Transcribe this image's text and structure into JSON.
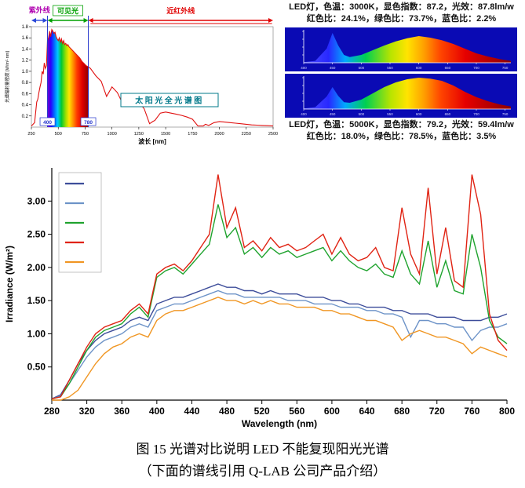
{
  "caption": {
    "line1": "图 15 光谱对比说明 LED 不能复现阳光光谱",
    "line2": "（下面的谱线引用 Q-LAB 公司产品介绍）"
  },
  "led_3000k": {
    "line1": "LED灯，色温：3000K，显色指数：87.2，光效：87.8lm/w",
    "line2": "红色比：24.1%，绿色比：73.7%，蓝色比：2.2%"
  },
  "led_5000k": {
    "line1": "LED灯，色温：5000K，显色指数：79.2，光效：59.4lm/w",
    "line2": "红色比：18.0%，绿色比：78.5%，蓝色比：3.5%"
  },
  "colors": {
    "led_bg": "#0a0ab4",
    "solar_curve": "#e01010",
    "uv_label": "#b000b0",
    "uv_arrow": "#2a48d8",
    "visible_label": "#00a000",
    "nir_label": "#e00000",
    "boundary_line": "#2233cc",
    "solar_title": "#00788a",
    "axis": "#000000"
  },
  "chart_data": [
    {
      "id": "solar",
      "type": "area",
      "title": "太阳光全光谱图",
      "xlabel": "波长 [nm]",
      "ylabel": "光谱辐射量密度 [W/m²·nm]",
      "xlim": [
        250,
        2500
      ],
      "ylim": [
        0,
        1.8
      ],
      "x_ticks": [
        250,
        500,
        750,
        1000,
        1250,
        1500,
        1750,
        2000,
        2250,
        2500
      ],
      "y_ticks": [
        0.2,
        0.4,
        0.6,
        0.8,
        1.0,
        1.2,
        1.4,
        1.6,
        1.8
      ],
      "regions": [
        {
          "label": "紫外线",
          "from": 250,
          "to": 400
        },
        {
          "label": "可见光",
          "from": 400,
          "to": 780
        },
        {
          "label": "近红外线",
          "from": 780,
          "to": 2500
        }
      ],
      "boundaries": [
        "400",
        "780"
      ],
      "x": [
        250,
        280,
        300,
        310,
        320,
        330,
        340,
        350,
        360,
        370,
        380,
        390,
        400,
        410,
        420,
        430,
        440,
        450,
        460,
        470,
        480,
        490,
        500,
        510,
        520,
        530,
        540,
        550,
        560,
        570,
        580,
        590,
        600,
        620,
        640,
        660,
        680,
        700,
        720,
        740,
        760,
        780,
        800,
        850,
        900,
        950,
        1000,
        1050,
        1100,
        1130,
        1150,
        1200,
        1250,
        1300,
        1350,
        1380,
        1400,
        1450,
        1500,
        1550,
        1600,
        1650,
        1700,
        1750,
        1800,
        1850,
        1870,
        1900,
        1950,
        2000,
        2050,
        2100,
        2150,
        2200,
        2250,
        2300,
        2350,
        2400,
        2450,
        2500
      ],
      "y": [
        0.02,
        0.08,
        0.45,
        0.5,
        0.62,
        0.72,
        0.8,
        1.0,
        0.95,
        1.15,
        1.05,
        1.1,
        1.55,
        1.6,
        1.72,
        1.62,
        1.75,
        1.72,
        1.68,
        1.7,
        1.62,
        1.58,
        1.55,
        1.6,
        1.52,
        1.58,
        1.5,
        1.55,
        1.48,
        1.5,
        1.46,
        1.48,
        1.44,
        1.4,
        1.36,
        1.32,
        1.28,
        1.24,
        1.18,
        1.14,
        1.1,
        1.08,
        1.05,
        0.92,
        0.82,
        0.55,
        0.72,
        0.62,
        0.42,
        0.5,
        0.52,
        0.48,
        0.44,
        0.33,
        0.06,
        0.1,
        0.12,
        0.25,
        0.27,
        0.25,
        0.23,
        0.21,
        0.18,
        0.14,
        0.02,
        0.02,
        0.05,
        0.03,
        0.08,
        0.1,
        0.09,
        0.08,
        0.07,
        0.06,
        0.05,
        0.04,
        0.035,
        0.03,
        0.025,
        0.02
      ]
    },
    {
      "id": "led_top",
      "type": "area",
      "xlim": [
        400,
        760
      ],
      "ylim": [
        0,
        1
      ],
      "x": [
        400,
        420,
        440,
        450,
        460,
        470,
        480,
        500,
        520,
        540,
        560,
        580,
        600,
        620,
        640,
        660,
        680,
        700,
        720,
        740,
        760
      ],
      "y": [
        0.02,
        0.06,
        0.45,
        0.95,
        0.55,
        0.25,
        0.18,
        0.25,
        0.4,
        0.55,
        0.68,
        0.78,
        0.85,
        0.8,
        0.72,
        0.6,
        0.45,
        0.3,
        0.2,
        0.12,
        0.06
      ],
      "x_ticks": [
        400,
        450,
        500,
        550,
        600,
        650,
        700,
        750
      ]
    },
    {
      "id": "led_bottom",
      "type": "area",
      "xlim": [
        400,
        760
      ],
      "ylim": [
        0,
        1
      ],
      "x": [
        400,
        420,
        440,
        450,
        460,
        470,
        480,
        500,
        520,
        540,
        560,
        580,
        600,
        620,
        640,
        660,
        680,
        700,
        720,
        740,
        760
      ],
      "y": [
        0.02,
        0.06,
        0.4,
        0.7,
        0.42,
        0.22,
        0.2,
        0.3,
        0.5,
        0.7,
        0.85,
        0.95,
        1.0,
        0.97,
        0.9,
        0.75,
        0.55,
        0.38,
        0.25,
        0.15,
        0.08
      ],
      "x_ticks": [
        400,
        450,
        500,
        550,
        600,
        650,
        700,
        750
      ]
    },
    {
      "id": "irradiance",
      "type": "line",
      "xlabel": "Wavelength (nm)",
      "ylabel": "Irradiance (W/m²)",
      "xlim": [
        280,
        800
      ],
      "ylim": [
        0,
        3.5
      ],
      "x_ticks": [
        280,
        320,
        360,
        400,
        440,
        480,
        520,
        560,
        600,
        640,
        680,
        720,
        760,
        800
      ],
      "y_ticks": [
        0.5,
        1.0,
        1.5,
        2.0,
        2.5,
        3.0
      ],
      "legend_position": "top-left",
      "grid": false,
      "x": [
        280,
        290,
        300,
        310,
        320,
        330,
        340,
        350,
        360,
        370,
        380,
        390,
        400,
        410,
        420,
        430,
        440,
        450,
        460,
        470,
        480,
        490,
        500,
        510,
        520,
        530,
        540,
        550,
        560,
        570,
        580,
        590,
        600,
        610,
        620,
        630,
        640,
        650,
        660,
        670,
        680,
        690,
        700,
        710,
        720,
        730,
        740,
        750,
        760,
        770,
        780,
        790,
        800
      ],
      "series": [
        {
          "name": "dark-blue",
          "color": "#3d4d9a",
          "values": [
            0.02,
            0.08,
            0.3,
            0.55,
            0.75,
            0.9,
            1.0,
            1.05,
            1.1,
            1.2,
            1.25,
            1.2,
            1.45,
            1.5,
            1.55,
            1.55,
            1.6,
            1.65,
            1.7,
            1.75,
            1.7,
            1.7,
            1.65,
            1.65,
            1.6,
            1.65,
            1.6,
            1.6,
            1.6,
            1.55,
            1.55,
            1.55,
            1.5,
            1.5,
            1.45,
            1.45,
            1.4,
            1.4,
            1.4,
            1.35,
            1.35,
            1.3,
            1.3,
            1.3,
            1.25,
            1.25,
            1.25,
            1.2,
            1.2,
            1.2,
            1.25,
            1.25,
            1.3
          ]
        },
        {
          "name": "steel-blue",
          "color": "#6d93c8",
          "values": [
            0.02,
            0.06,
            0.25,
            0.45,
            0.65,
            0.8,
            0.9,
            0.95,
            1.0,
            1.1,
            1.15,
            1.1,
            1.35,
            1.4,
            1.45,
            1.45,
            1.5,
            1.55,
            1.6,
            1.65,
            1.6,
            1.6,
            1.55,
            1.55,
            1.55,
            1.55,
            1.55,
            1.5,
            1.5,
            1.5,
            1.45,
            1.45,
            1.45,
            1.4,
            1.4,
            1.4,
            1.35,
            1.35,
            1.3,
            1.3,
            1.25,
            0.95,
            1.2,
            1.2,
            1.15,
            1.15,
            1.1,
            1.1,
            0.9,
            1.05,
            1.1,
            1.1,
            1.15
          ]
        },
        {
          "name": "green",
          "color": "#1fa32e",
          "values": [
            0.02,
            0.05,
            0.25,
            0.5,
            0.75,
            0.95,
            1.05,
            1.1,
            1.15,
            1.3,
            1.4,
            1.25,
            1.85,
            1.95,
            2.0,
            1.9,
            2.05,
            2.2,
            2.35,
            2.95,
            2.45,
            2.6,
            2.2,
            2.3,
            2.15,
            2.3,
            2.2,
            2.25,
            2.15,
            2.2,
            2.25,
            2.3,
            2.1,
            2.25,
            2.1,
            2.0,
            1.95,
            2.05,
            1.9,
            1.85,
            2.25,
            1.9,
            1.75,
            2.4,
            1.7,
            2.1,
            1.65,
            1.6,
            2.5,
            2.0,
            1.2,
            0.95,
            0.85
          ]
        },
        {
          "name": "red",
          "color": "#e02313",
          "values": [
            0.02,
            0.05,
            0.3,
            0.55,
            0.8,
            1.0,
            1.1,
            1.15,
            1.2,
            1.35,
            1.45,
            1.3,
            1.9,
            2.0,
            2.05,
            1.95,
            2.1,
            2.3,
            2.5,
            3.4,
            2.6,
            2.9,
            2.3,
            2.4,
            2.25,
            2.45,
            2.3,
            2.35,
            2.25,
            2.3,
            2.4,
            2.5,
            2.2,
            2.45,
            2.2,
            2.1,
            2.15,
            2.3,
            2.0,
            1.95,
            2.9,
            2.2,
            1.9,
            3.2,
            1.9,
            2.6,
            1.8,
            1.7,
            3.4,
            2.8,
            1.3,
            0.9,
            0.75
          ]
        },
        {
          "name": "orange",
          "color": "#f09623",
          "values": [
            0.0,
            0.0,
            0.05,
            0.15,
            0.35,
            0.55,
            0.7,
            0.8,
            0.85,
            0.95,
            1.0,
            0.95,
            1.2,
            1.3,
            1.35,
            1.35,
            1.4,
            1.45,
            1.5,
            1.55,
            1.5,
            1.5,
            1.45,
            1.5,
            1.45,
            1.5,
            1.45,
            1.45,
            1.4,
            1.4,
            1.4,
            1.35,
            1.35,
            1.3,
            1.3,
            1.25,
            1.2,
            1.2,
            1.15,
            1.1,
            0.9,
            1.0,
            1.05,
            1.0,
            0.95,
            0.95,
            0.9,
            0.85,
            0.7,
            0.8,
            0.75,
            0.7,
            0.65
          ]
        }
      ]
    }
  ]
}
